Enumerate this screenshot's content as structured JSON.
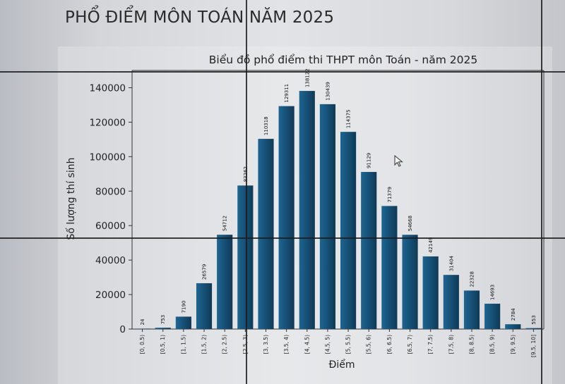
{
  "slide": {
    "title": "PHỔ ĐIỂM MÔN TOÁN NĂM 2025"
  },
  "chart_data": {
    "type": "bar",
    "title": "Biểu đồ phổ điểm thi THPT môn Toán - năm 2025",
    "xlabel": "Điểm",
    "ylabel": "Số lượng thí sinh",
    "ylim": [
      0,
      150000
    ],
    "yticks": [
      0,
      20000,
      40000,
      60000,
      80000,
      100000,
      120000,
      140000
    ],
    "grid": false,
    "categories": [
      "[0, 0.5)",
      "[0.5, 1)",
      "[1, 1.5)",
      "[1.5, 2)",
      "[2, 2.5)",
      "[2.5, 3)",
      "[3, 3.5)",
      "[3.5, 4)",
      "[4, 4.5)",
      "[4.5, 5)",
      "[5, 5.5)",
      "[5.5, 6)",
      "[6, 6.5)",
      "[6.5, 7)",
      "[7, 7.5)",
      "[7.5, 8)",
      "[8, 8.5)",
      "[8.5, 9)",
      "[9, 9.5)",
      "[9.5, 10]"
    ],
    "values": [
      24,
      753,
      7190,
      26579,
      54712,
      83262,
      110318,
      129311,
      138122,
      130439,
      114375,
      91129,
      71379,
      54668,
      42149,
      31404,
      22328,
      14693,
      2784,
      553
    ],
    "value_labels": [
      "24",
      "753",
      "7190",
      "26579",
      "54712",
      "83262",
      "110318",
      "129311",
      "138122",
      "130439",
      "114375",
      "91129",
      "71379",
      "54668",
      "42149",
      "31404",
      "22328",
      "14693",
      "2784",
      "553"
    ],
    "bar_color": "#1d6592",
    "bar_color_dark": "#0f3a57"
  }
}
